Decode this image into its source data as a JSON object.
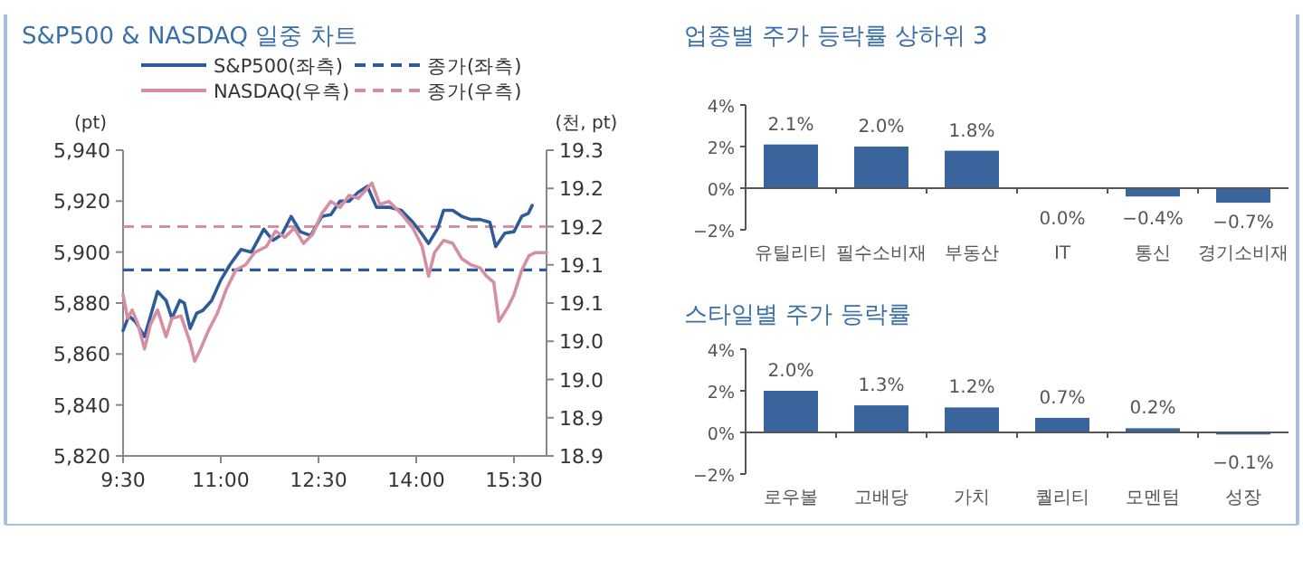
{
  "chart_data": [
    {
      "type": "line",
      "title": "S&P500 & NASDAQ 일중 차트",
      "ylabel": "(pt)",
      "y2label": "(천, pt)",
      "legend": "top",
      "grid": false,
      "marker": "none",
      "line_style": "solid",
      "xlim": [
        9.5,
        16.0
      ],
      "xticks": [
        {
          "value": 9.5,
          "label": "9:30"
        },
        {
          "value": 11,
          "label": "11:00"
        },
        {
          "value": 12.5,
          "label": "12:30"
        },
        {
          "value": 14,
          "label": "14:00"
        },
        {
          "value": 15.5,
          "label": "15:30"
        }
      ],
      "ylim": [
        5820,
        5940
      ],
      "yticks": [
        {
          "value": 5820,
          "label": "5,820"
        },
        {
          "value": 5840,
          "label": "5,840"
        },
        {
          "value": 5860,
          "label": "5,860"
        },
        {
          "value": 5880,
          "label": "5,880"
        },
        {
          "value": 5900,
          "label": "5,900"
        },
        {
          "value": 5920,
          "label": "5,920"
        },
        {
          "value": 5940,
          "label": "5,940"
        }
      ],
      "y2lim": [
        18.9,
        19.3
      ],
      "y2ticks": [
        {
          "value": 18.9,
          "label": "18.9"
        },
        {
          "value": 18.95,
          "label": "18.9"
        },
        {
          "value": 19.0,
          "label": "19.0"
        },
        {
          "value": 19.05,
          "label": "19.0"
        },
        {
          "value": 19.1,
          "label": "19.1"
        },
        {
          "value": 19.15,
          "label": "19.1"
        },
        {
          "value": 19.2,
          "label": "19.2"
        },
        {
          "value": 19.25,
          "label": "19.2"
        },
        {
          "value": 19.3,
          "label": "19.3"
        }
      ],
      "ref_lines": [
        {
          "axis": "y",
          "value": 5893,
          "label": "종가(좌측)",
          "color": "#2e5c9a",
          "line_style": "dashed"
        },
        {
          "axis": "y2",
          "value": 19.2,
          "label": "종가(우측)",
          "color": "#d58fa0",
          "line_style": "dashed"
        }
      ],
      "series": [
        {
          "name": "S&P500(좌측)",
          "color": "#2e5c9a",
          "x": [
            9.5,
            9.59,
            9.69,
            9.83,
            10.03,
            10.16,
            10.25,
            10.37,
            10.44,
            10.53,
            10.63,
            10.72,
            10.86,
            11.0,
            11.14,
            11.31,
            11.47,
            11.66,
            11.8,
            11.94,
            12.08,
            12.22,
            12.38,
            12.55,
            12.69,
            12.83,
            12.97,
            13.11,
            13.25,
            13.39,
            13.58,
            13.77,
            13.95,
            14.09,
            14.19,
            14.33,
            14.42,
            14.56,
            14.7,
            14.84,
            14.98,
            15.13,
            15.22,
            15.36,
            15.5,
            15.62,
            15.72,
            15.78
          ],
          "values": [
            5869.2,
            5875,
            5872.7,
            5866.8,
            5884.5,
            5881,
            5874,
            5881,
            5880,
            5870,
            5876,
            5877,
            5881,
            5889,
            5895,
            5901,
            5900,
            5909,
            5904.6,
            5907,
            5914,
            5908,
            5906.5,
            5914,
            5914.7,
            5920,
            5920,
            5923.5,
            5925.8,
            5917.6,
            5917.6,
            5916.4,
            5911.7,
            5907,
            5903.4,
            5909.3,
            5916.4,
            5916.4,
            5914,
            5912.8,
            5912.8,
            5911.7,
            5902.2,
            5907.4,
            5908,
            5914,
            5915.2,
            5918.3
          ]
        },
        {
          "name": "NASDAQ(우측)",
          "color": "#d58fa0",
          "axis": "y2",
          "x": [
            9.5,
            9.57,
            9.64,
            9.73,
            9.83,
            9.92,
            10.03,
            10.16,
            10.25,
            10.39,
            10.53,
            10.6,
            10.69,
            10.81,
            10.95,
            11.09,
            11.23,
            11.38,
            11.52,
            11.7,
            11.84,
            11.98,
            12.13,
            12.27,
            12.41,
            12.55,
            12.69,
            12.83,
            12.97,
            13.11,
            13.32,
            13.44,
            13.58,
            13.77,
            13.95,
            14.09,
            14.19,
            14.28,
            14.42,
            14.56,
            14.7,
            14.84,
            14.98,
            15.08,
            15.19,
            15.27,
            15.41,
            15.5,
            15.62,
            15.73,
            15.83,
            16.0
          ],
          "values": [
            19.111,
            19.08,
            19.091,
            19.072,
            19.04,
            19.072,
            19.091,
            19.056,
            19.08,
            19.083,
            19.048,
            19.024,
            19.04,
            19.064,
            19.087,
            19.119,
            19.143,
            19.15,
            19.166,
            19.174,
            19.194,
            19.186,
            19.198,
            19.178,
            19.19,
            19.217,
            19.233,
            19.225,
            19.241,
            19.237,
            19.257,
            19.229,
            19.233,
            19.217,
            19.198,
            19.174,
            19.135,
            19.166,
            19.182,
            19.178,
            19.158,
            19.15,
            19.146,
            19.135,
            19.127,
            19.076,
            19.095,
            19.111,
            19.143,
            19.162,
            19.166,
            19.166
          ]
        }
      ]
    },
    {
      "type": "bar",
      "title": "업종별 주가 등락률 상하위 3",
      "color": "#3a659c",
      "categories": [
        "유틸리티",
        "필수소비재",
        "부동산",
        "IT",
        "통신",
        "경기소비재"
      ],
      "values": [
        2.1,
        2.0,
        1.8,
        -0.04,
        -0.4,
        -0.7
      ],
      "value_labels": [
        "2.1%",
        "2.0%",
        "1.8%",
        "0.0%",
        "−0.4%",
        "−0.7%"
      ],
      "ylim": [
        -2,
        4
      ],
      "yticks": [
        {
          "value": -2,
          "label": "−2%"
        },
        {
          "value": 0,
          "label": "0%"
        },
        {
          "value": 2,
          "label": "2%"
        },
        {
          "value": 4,
          "label": "4%"
        }
      ]
    },
    {
      "type": "bar",
      "title": "스타일별 주가 등락률",
      "color": "#3a659c",
      "categories": [
        "로우볼",
        "고배당",
        "가치",
        "퀄리티",
        "모멘텀",
        "성장"
      ],
      "values": [
        2.0,
        1.3,
        1.2,
        0.7,
        0.2,
        -0.1
      ],
      "value_labels": [
        "2.0%",
        "1.3%",
        "1.2%",
        "0.7%",
        "0.2%",
        "−0.1%"
      ],
      "ylim": [
        -2,
        4
      ],
      "yticks": [
        {
          "value": -2,
          "label": "−2%"
        },
        {
          "value": 0,
          "label": "0%"
        },
        {
          "value": 2,
          "label": "2%"
        },
        {
          "value": 4,
          "label": "4%"
        }
      ]
    }
  ]
}
